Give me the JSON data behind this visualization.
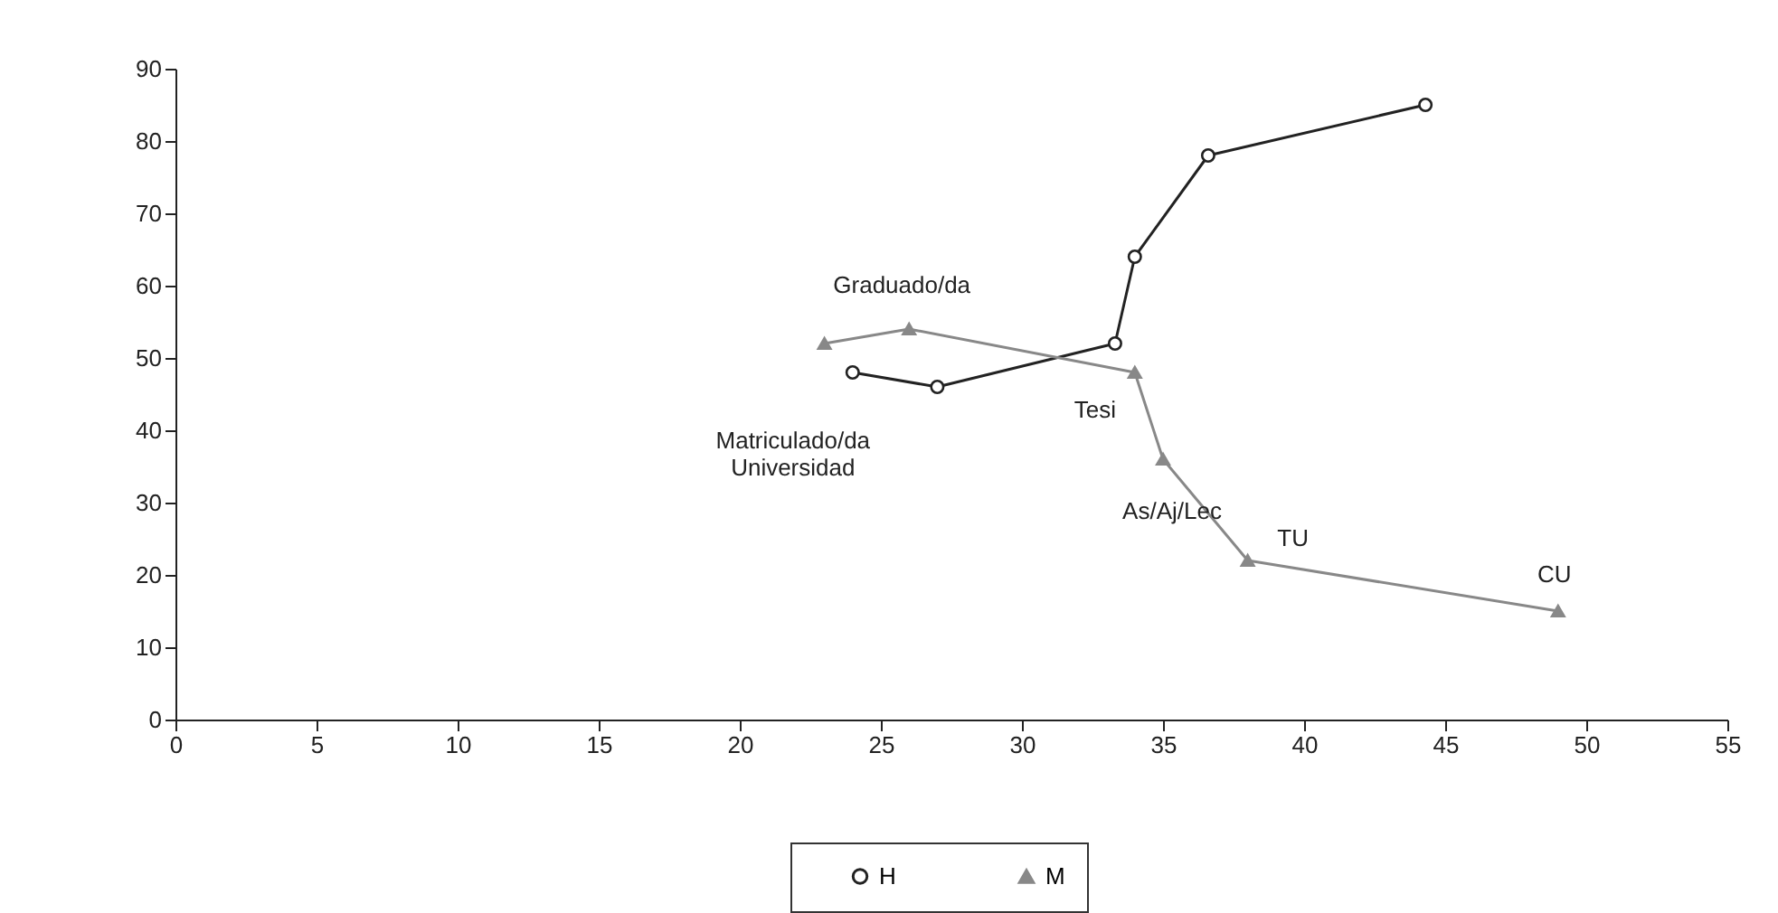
{
  "chart_data": {
    "type": "line",
    "xlim": [
      0,
      55
    ],
    "xticks": [
      0,
      5,
      10,
      15,
      20,
      25,
      30,
      35,
      40,
      45,
      50,
      55
    ],
    "ylim": [
      0,
      90
    ],
    "yticks": [
      0,
      10,
      20,
      30,
      40,
      50,
      60,
      70,
      80,
      90
    ],
    "grid": false,
    "legend": "bottom",
    "series": [
      {
        "name": "H",
        "color": "#222222",
        "marker": "circle",
        "x": [
          24,
          27,
          33.3,
          34,
          36.6,
          44.3
        ],
        "values": [
          48,
          46,
          52,
          64,
          78,
          85
        ]
      },
      {
        "name": "M",
        "color": "#888888",
        "marker": "triangle",
        "x": [
          23,
          26,
          34,
          35,
          38,
          49
        ],
        "values": [
          52,
          54,
          48,
          36,
          22,
          15
        ]
      }
    ],
    "annotations": [
      {
        "text": "Graduado/da",
        "x": 26,
        "y": 54
      },
      {
        "text": "Matriculado/da\nUniversidad",
        "x": 24,
        "y": 48
      },
      {
        "text": "Tesi",
        "x": 34,
        "y": 48
      },
      {
        "text": "As/Aj/Lec",
        "x": 35,
        "y": 36
      },
      {
        "text": "TU",
        "x": 38,
        "y": 22
      },
      {
        "text": "CU",
        "x": 49,
        "y": 15
      }
    ]
  }
}
